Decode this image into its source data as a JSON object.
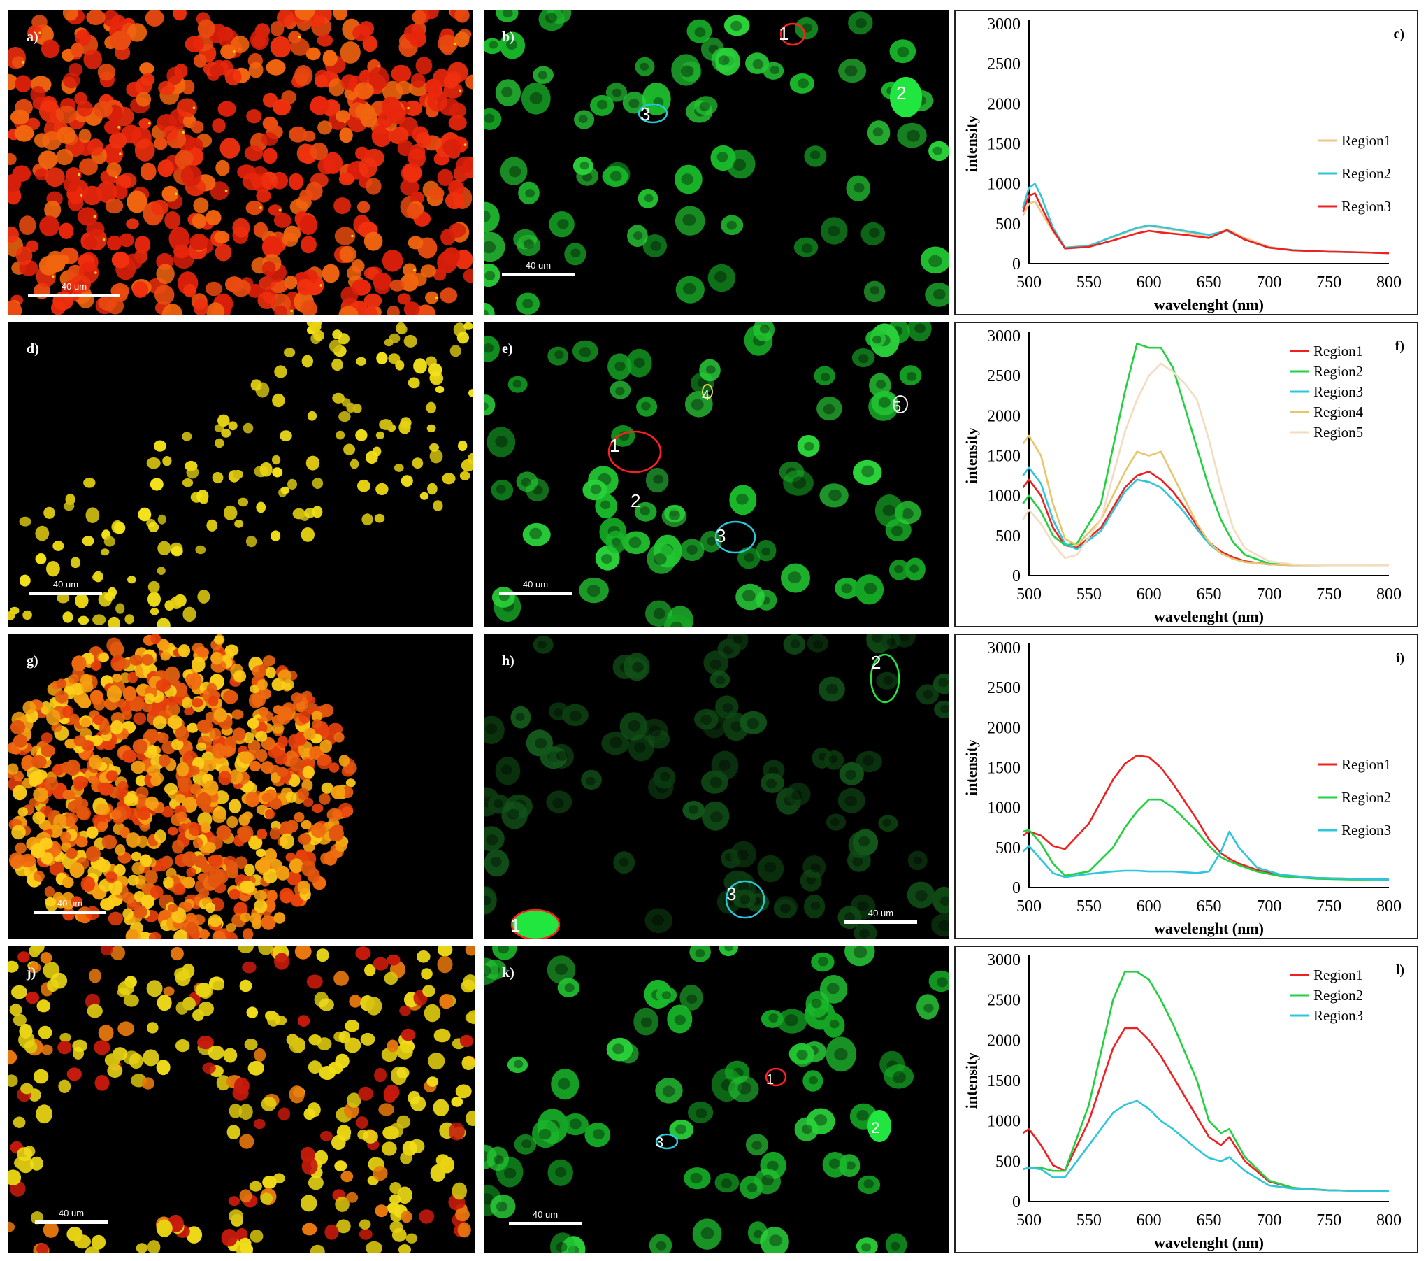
{
  "panels": [
    {
      "id": "a",
      "label": "a)",
      "type": "micro",
      "scale": "40 um",
      "palette": "redcells"
    },
    {
      "id": "b",
      "label": "b)",
      "type": "micro",
      "scale": "40 um",
      "palette": "green",
      "rois": [
        {
          "n": "1",
          "color": "#ff2020"
        },
        {
          "n": "2",
          "color": "#22e640"
        },
        {
          "n": "3",
          "color": "#29c7d9"
        }
      ]
    },
    {
      "id": "c",
      "label": "c)",
      "type": "plot",
      "chart_index": 0
    },
    {
      "id": "d",
      "label": "d)",
      "type": "micro",
      "scale": "40 um",
      "palette": "yellowsparse"
    },
    {
      "id": "e",
      "label": "e)",
      "type": "micro",
      "scale": "40 um",
      "palette": "green",
      "rois": [
        {
          "n": "1",
          "color": "#ff2020"
        },
        {
          "n": "2",
          "color": "#22e640"
        },
        {
          "n": "3",
          "color": "#29c7d9"
        },
        {
          "n": "4",
          "color": "#e8d25a"
        },
        {
          "n": "5",
          "color": "#f2f2f2"
        }
      ]
    },
    {
      "id": "f",
      "label": "f)",
      "type": "plot",
      "chart_index": 1
    },
    {
      "id": "g",
      "label": "g)",
      "type": "micro",
      "scale": "40 um",
      "palette": "orangedense"
    },
    {
      "id": "h",
      "label": "h)",
      "type": "micro",
      "scale": "40 um",
      "palette": "dimgreen",
      "rois": [
        {
          "n": "1",
          "color": "#ff2020"
        },
        {
          "n": "2",
          "color": "#22e640"
        },
        {
          "n": "3",
          "color": "#29c7d9"
        }
      ]
    },
    {
      "id": "i",
      "label": "i)",
      "type": "plot",
      "chart_index": 2
    },
    {
      "id": "j",
      "label": "j)",
      "type": "micro",
      "scale": "40 um",
      "palette": "yellowred"
    },
    {
      "id": "k",
      "label": "k)",
      "type": "micro",
      "scale": "40 um",
      "palette": "green",
      "rois": [
        {
          "n": "1",
          "color": "#ff2020"
        },
        {
          "n": "2",
          "color": "#22e640"
        },
        {
          "n": "3",
          "color": "#29c7d9"
        }
      ]
    },
    {
      "id": "l",
      "label": "l)",
      "type": "plot",
      "chart_index": 3
    }
  ],
  "chart_data": [
    {
      "type": "line",
      "title": "",
      "xlabel": "wavelenght (nm)",
      "ylabel": "intensity",
      "xlim": [
        500,
        800
      ],
      "ylim": [
        0,
        3000
      ],
      "xticks": [
        "500",
        "550",
        "600",
        "650",
        "700",
        "750",
        "800"
      ],
      "yticks": [
        "0",
        "500",
        "1000",
        "1500",
        "2000",
        "2500",
        "3000"
      ],
      "legend": "right",
      "x": [
        495,
        500,
        505,
        510,
        520,
        530,
        550,
        570,
        590,
        600,
        610,
        630,
        650,
        665,
        680,
        700,
        720,
        750,
        780,
        800
      ],
      "series": [
        {
          "name": "Region1",
          "color": "#f2c48a",
          "values": [
            600,
            750,
            780,
            650,
            400,
            200,
            230,
            330,
            440,
            470,
            450,
            400,
            330,
            430,
            320,
            210,
            170,
            150,
            140,
            130
          ]
        },
        {
          "name": "Region2",
          "color": "#2fc6dc",
          "values": [
            700,
            950,
            1000,
            850,
            450,
            200,
            220,
            340,
            450,
            480,
            460,
            410,
            360,
            410,
            300,
            200,
            170,
            150,
            140,
            130
          ]
        },
        {
          "name": "Region3",
          "color": "#ee2020",
          "values": [
            650,
            850,
            880,
            720,
            420,
            190,
            210,
            290,
            380,
            410,
            390,
            360,
            320,
            420,
            300,
            200,
            165,
            150,
            140,
            130
          ]
        }
      ]
    },
    {
      "type": "line",
      "title": "",
      "xlabel": "wavelenght (nm)",
      "ylabel": "intensity",
      "xlim": [
        500,
        800
      ],
      "ylim": [
        0,
        3000
      ],
      "xticks": [
        "500",
        "550",
        "600",
        "650",
        "700",
        "750",
        "800"
      ],
      "yticks": [
        "0",
        "500",
        "1000",
        "1500",
        "2000",
        "2500",
        "3000"
      ],
      "legend": "top-right",
      "x": [
        495,
        500,
        510,
        520,
        530,
        540,
        560,
        580,
        590,
        600,
        610,
        620,
        630,
        640,
        650,
        660,
        670,
        680,
        700,
        720,
        750,
        800
      ],
      "series": [
        {
          "name": "Region1",
          "color": "#ee2020",
          "values": [
            1100,
            1200,
            1000,
            600,
            380,
            350,
            600,
            1100,
            1250,
            1300,
            1200,
            1050,
            850,
            620,
            420,
            300,
            230,
            180,
            140,
            130,
            130,
            130
          ]
        },
        {
          "name": "Region2",
          "color": "#22d040",
          "values": [
            900,
            1000,
            800,
            500,
            380,
            400,
            900,
            2300,
            2900,
            2850,
            2850,
            2600,
            2100,
            1600,
            1100,
            700,
            420,
            260,
            150,
            130,
            130,
            130
          ]
        },
        {
          "name": "Region3",
          "color": "#2fc6dc",
          "values": [
            1250,
            1350,
            1150,
            700,
            400,
            330,
            560,
            1050,
            1200,
            1170,
            1100,
            950,
            780,
            580,
            400,
            280,
            210,
            170,
            140,
            130,
            130,
            130
          ]
        },
        {
          "name": "Region4",
          "color": "#e8c46a",
          "values": [
            1650,
            1750,
            1500,
            900,
            460,
            380,
            700,
            1300,
            1550,
            1500,
            1550,
            1250,
            950,
            650,
            420,
            280,
            210,
            170,
            140,
            130,
            130,
            130
          ]
        },
        {
          "name": "Region5",
          "color": "#f3dcc0",
          "values": [
            700,
            820,
            650,
            400,
            220,
            260,
            700,
            1800,
            2200,
            2500,
            2650,
            2550,
            2400,
            2200,
            1700,
            1100,
            600,
            340,
            180,
            140,
            130,
            130
          ]
        }
      ]
    },
    {
      "type": "line",
      "title": "",
      "xlabel": "wavelenght (nm)",
      "ylabel": "intensity",
      "xlim": [
        500,
        800
      ],
      "ylim": [
        0,
        3000
      ],
      "xticks": [
        "500",
        "550",
        "600",
        "650",
        "700",
        "750",
        "800"
      ],
      "yticks": [
        "0",
        "500",
        "1000",
        "1500",
        "2000",
        "2500",
        "3000"
      ],
      "legend": "right",
      "x": [
        495,
        500,
        510,
        520,
        530,
        550,
        570,
        580,
        590,
        600,
        610,
        620,
        640,
        650,
        660,
        667,
        675,
        690,
        710,
        740,
        770,
        800
      ],
      "series": [
        {
          "name": "Region1",
          "color": "#ee2020",
          "values": [
            650,
            700,
            650,
            520,
            480,
            800,
            1350,
            1550,
            1650,
            1630,
            1500,
            1300,
            850,
            600,
            430,
            360,
            300,
            220,
            150,
            120,
            110,
            100
          ]
        },
        {
          "name": "Region2",
          "color": "#22d040",
          "values": [
            700,
            720,
            550,
            300,
            150,
            200,
            500,
            750,
            950,
            1100,
            1100,
            1000,
            700,
            520,
            380,
            330,
            280,
            200,
            140,
            110,
            100,
            100
          ]
        },
        {
          "name": "Region3",
          "color": "#2fc6dc",
          "values": [
            450,
            520,
            350,
            180,
            130,
            170,
            200,
            210,
            210,
            200,
            200,
            200,
            180,
            200,
            450,
            700,
            500,
            250,
            160,
            120,
            110,
            100
          ]
        }
      ]
    },
    {
      "type": "line",
      "title": "",
      "xlabel": "wavelenght (nm)",
      "ylabel": "intensity",
      "xlim": [
        500,
        800
      ],
      "ylim": [
        0,
        3000
      ],
      "xticks": [
        "500",
        "550",
        "600",
        "650",
        "700",
        "750",
        "800"
      ],
      "yticks": [
        "0",
        "500",
        "1000",
        "1500",
        "2000",
        "2500",
        "3000"
      ],
      "legend": "top-right",
      "x": [
        495,
        500,
        510,
        520,
        530,
        550,
        570,
        580,
        590,
        600,
        610,
        620,
        640,
        650,
        660,
        667,
        680,
        700,
        720,
        750,
        780,
        800
      ],
      "series": [
        {
          "name": "Region1",
          "color": "#ee2020",
          "values": [
            850,
            900,
            700,
            450,
            380,
            1000,
            1900,
            2150,
            2150,
            2000,
            1800,
            1550,
            1050,
            800,
            700,
            800,
            500,
            250,
            170,
            140,
            130,
            130
          ]
        },
        {
          "name": "Region2",
          "color": "#22d040",
          "values": [
            400,
            420,
            420,
            380,
            380,
            1200,
            2500,
            2850,
            2850,
            2750,
            2500,
            2200,
            1500,
            1000,
            850,
            900,
            550,
            260,
            170,
            140,
            130,
            130
          ]
        },
        {
          "name": "Region3",
          "color": "#2fc6dc",
          "values": [
            400,
            420,
            400,
            300,
            300,
            700,
            1100,
            1200,
            1250,
            1150,
            1000,
            900,
            650,
            540,
            500,
            550,
            380,
            200,
            160,
            140,
            130,
            130
          ]
        }
      ]
    }
  ]
}
